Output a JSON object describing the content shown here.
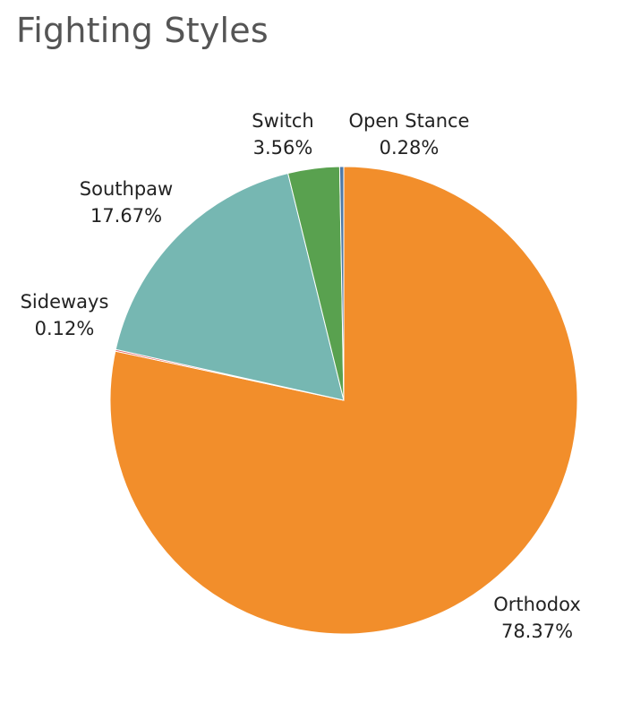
{
  "chart_data": {
    "type": "pie",
    "title": "Fighting Styles",
    "slices": [
      {
        "label": "Orthodox",
        "value": 78.37,
        "value_label": "78.37%",
        "color": "#f28e2b"
      },
      {
        "label": "Sideways",
        "value": 0.12,
        "value_label": "0.12%",
        "color": "#e15759"
      },
      {
        "label": "Southpaw",
        "value": 17.67,
        "value_label": "17.67%",
        "color": "#76b7b2"
      },
      {
        "label": "Switch",
        "value": 3.56,
        "value_label": "3.56%",
        "color": "#59a14f"
      },
      {
        "label": "Open Stance",
        "value": 0.28,
        "value_label": "0.28%",
        "color": "#4e79a7"
      }
    ],
    "start": "12 o'clock",
    "direction": "clockwise"
  }
}
